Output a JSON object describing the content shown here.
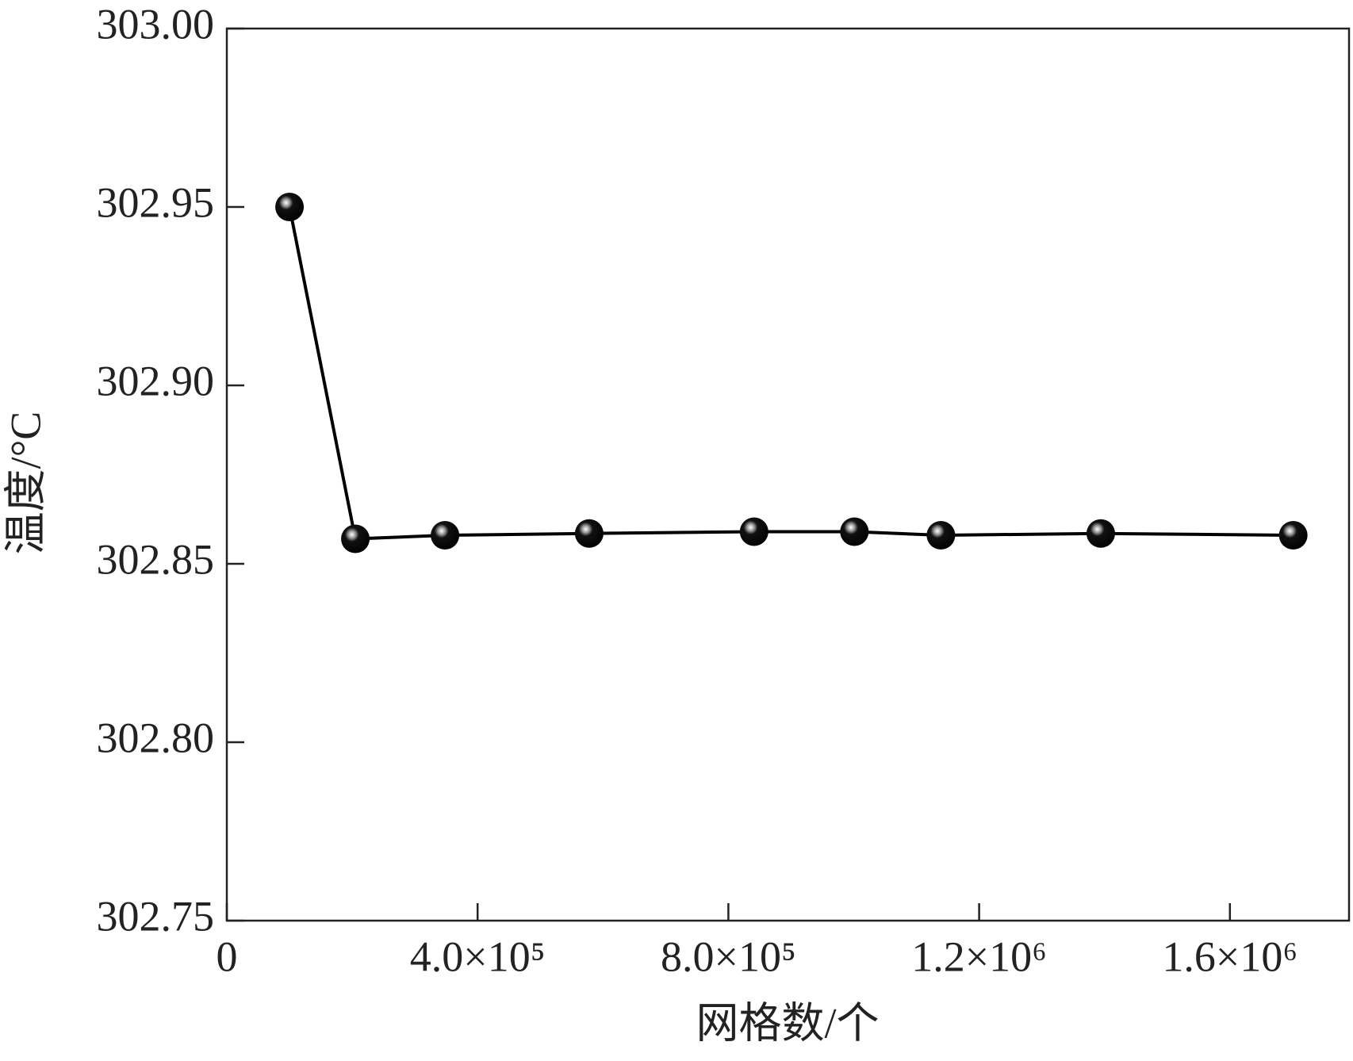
{
  "chart_data": {
    "type": "line",
    "x_label": "网格数/个",
    "y_label": "温度/°C",
    "x": [
      100000,
      205000,
      348000,
      578000,
      841000,
      1001000,
      1139000,
      1394000,
      1701000
    ],
    "series": [
      {
        "color": "#000000",
        "values": [
          302.95,
          302.857,
          302.858,
          302.8585,
          302.859,
          302.859,
          302.858,
          302.8585,
          302.858
        ]
      }
    ],
    "xlim": [
      0,
      1790000
    ],
    "xticks": [
      0,
      {
        "value": 400000,
        "label": "4.0×10⁵"
      },
      {
        "value": 800000,
        "label": "8.0×10⁵"
      },
      {
        "value": 1200000,
        "label": "1.2×10⁶"
      },
      {
        "value": 1600000,
        "label": "1.6×10⁶"
      }
    ],
    "ylim": [
      302.75,
      303
    ],
    "yticks": [
      {
        "value": 302.75,
        "label": "302.75"
      },
      {
        "value": 302.8,
        "label": "302.80"
      },
      {
        "value": 302.85,
        "label": "302.85"
      },
      {
        "value": 302.9,
        "label": "302.90"
      },
      {
        "value": 302.95,
        "label": "302.95"
      },
      {
        "value": 303,
        "label": "303.00"
      }
    ]
  }
}
